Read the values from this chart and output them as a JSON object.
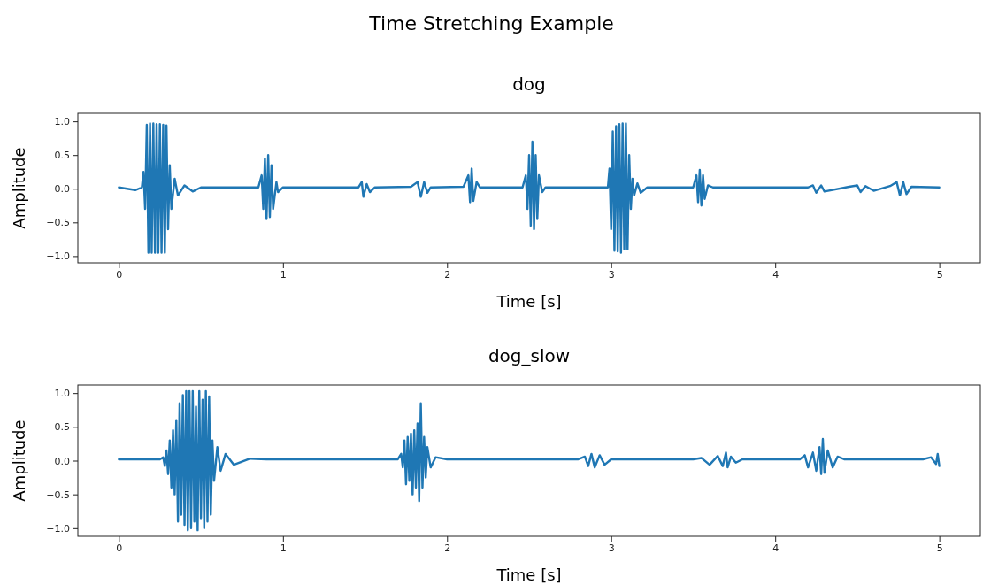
{
  "chart_data": [
    {
      "type": "line",
      "title": "dog",
      "annotations": [
        "Time Stretching Example"
      ],
      "xlabel": "Time [s]",
      "ylabel": "Amplitude",
      "xlim": [
        -0.25,
        5.25
      ],
      "ylim": [
        -1.1,
        1.12
      ],
      "xticks": [
        0,
        1,
        2,
        3,
        4,
        5
      ],
      "yticks": [
        {
          "value": -1,
          "label": "−1.0"
        },
        {
          "value": -0.5,
          "label": "−0.5"
        },
        {
          "value": 0,
          "label": "0.0"
        },
        {
          "value": 0.5,
          "label": "0.5"
        },
        {
          "value": 1,
          "label": "1.0"
        }
      ],
      "series": [
        {
          "color": "#1f77b4",
          "x": [
            0,
            0.1,
            0.14,
            0.15,
            0.16,
            0.17,
            0.18,
            0.19,
            0.2,
            0.21,
            0.22,
            0.23,
            0.24,
            0.25,
            0.26,
            0.27,
            0.28,
            0.29,
            0.3,
            0.31,
            0.32,
            0.34,
            0.36,
            0.4,
            0.45,
            0.5,
            0.85,
            0.87,
            0.88,
            0.89,
            0.9,
            0.91,
            0.92,
            0.93,
            0.94,
            0.96,
            0.97,
            1.0,
            1.46,
            1.48,
            1.49,
            1.51,
            1.53,
            1.56,
            1.78,
            1.82,
            1.84,
            1.86,
            1.88,
            1.9,
            2.1,
            2.13,
            2.14,
            2.15,
            2.16,
            2.18,
            2.2,
            2.46,
            2.48,
            2.49,
            2.5,
            2.51,
            2.52,
            2.53,
            2.54,
            2.55,
            2.56,
            2.58,
            2.6,
            2.98,
            2.99,
            3.0,
            3.01,
            3.02,
            3.03,
            3.04,
            3.05,
            3.06,
            3.07,
            3.08,
            3.09,
            3.1,
            3.11,
            3.12,
            3.13,
            3.14,
            3.16,
            3.18,
            3.22,
            3.5,
            3.52,
            3.53,
            3.54,
            3.55,
            3.56,
            3.57,
            3.59,
            3.62,
            4.2,
            4.23,
            4.25,
            4.28,
            4.3,
            4.45,
            4.5,
            4.52,
            4.55,
            4.6,
            4.7,
            4.74,
            4.76,
            4.78,
            4.8,
            4.83,
            5.0
          ],
          "values": [
            0.02,
            -0.02,
            0.02,
            0.25,
            -0.3,
            0.95,
            -0.95,
            0.97,
            -0.95,
            0.97,
            -0.95,
            0.96,
            -0.95,
            0.96,
            -0.95,
            0.95,
            -0.95,
            0.94,
            -0.6,
            0.35,
            -0.3,
            0.15,
            -0.1,
            0.05,
            -0.04,
            0.02,
            0.02,
            0.2,
            -0.3,
            0.45,
            -0.45,
            0.5,
            -0.42,
            0.35,
            -0.3,
            0.1,
            -0.05,
            0.02,
            0.02,
            0.1,
            -0.12,
            0.07,
            -0.05,
            0.02,
            0.03,
            0.1,
            -0.12,
            0.1,
            -0.06,
            0.02,
            0.03,
            0.2,
            -0.2,
            0.3,
            -0.18,
            0.1,
            0.02,
            0.02,
            0.2,
            -0.3,
            0.5,
            -0.55,
            0.7,
            -0.6,
            0.5,
            -0.45,
            0.2,
            -0.05,
            0.02,
            0.02,
            0.3,
            -0.6,
            0.85,
            -0.92,
            0.93,
            -0.93,
            0.96,
            -0.95,
            0.97,
            -0.9,
            0.97,
            -0.9,
            0.5,
            -0.3,
            0.15,
            -0.1,
            0.08,
            -0.06,
            0.02,
            0.02,
            0.2,
            -0.2,
            0.28,
            -0.25,
            0.2,
            -0.15,
            0.05,
            0.02,
            0.02,
            0.05,
            -0.06,
            0.05,
            -0.04,
            0.03,
            0.05,
            -0.05,
            0.04,
            -0.03,
            0.04,
            0.1,
            -0.1,
            0.1,
            -0.08,
            0.03,
            0.02
          ]
        }
      ]
    },
    {
      "type": "line",
      "title": "dog_slow",
      "xlabel": "Time [s]",
      "ylabel": "Amplitude",
      "xlim": [
        -0.25,
        5.25
      ],
      "ylim": [
        -1.12,
        1.12
      ],
      "xticks": [
        0,
        1,
        2,
        3,
        4,
        5
      ],
      "yticks": [
        {
          "value": -1,
          "label": "−1.0"
        },
        {
          "value": -0.5,
          "label": "−0.5"
        },
        {
          "value": 0,
          "label": "0.0"
        },
        {
          "value": 0.5,
          "label": "0.5"
        },
        {
          "value": 1,
          "label": "1.0"
        }
      ],
      "series": [
        {
          "color": "#1f77b4",
          "x": [
            0,
            0.25,
            0.27,
            0.28,
            0.29,
            0.3,
            0.31,
            0.32,
            0.33,
            0.34,
            0.35,
            0.36,
            0.37,
            0.38,
            0.39,
            0.4,
            0.41,
            0.42,
            0.43,
            0.44,
            0.45,
            0.46,
            0.47,
            0.48,
            0.49,
            0.5,
            0.51,
            0.52,
            0.53,
            0.54,
            0.55,
            0.56,
            0.57,
            0.58,
            0.6,
            0.62,
            0.65,
            0.7,
            0.8,
            0.9,
            1.7,
            1.72,
            1.73,
            1.74,
            1.75,
            1.76,
            1.77,
            1.78,
            1.79,
            1.8,
            1.81,
            1.82,
            1.83,
            1.84,
            1.85,
            1.86,
            1.87,
            1.88,
            1.9,
            1.93,
            2.0,
            2.8,
            2.84,
            2.86,
            2.88,
            2.9,
            2.93,
            2.96,
            3.0,
            3.5,
            3.55,
            3.6,
            3.65,
            3.68,
            3.7,
            3.71,
            3.73,
            3.76,
            3.8,
            4.15,
            4.18,
            4.2,
            4.23,
            4.25,
            4.27,
            4.28,
            4.29,
            4.3,
            4.32,
            4.35,
            4.38,
            4.42,
            4.9,
            4.95,
            4.98,
            4.99,
            5.0
          ],
          "values": [
            0.02,
            0.02,
            0.05,
            -0.08,
            0.15,
            -0.2,
            0.3,
            -0.4,
            0.45,
            -0.5,
            0.6,
            -0.9,
            0.85,
            -0.8,
            0.97,
            -0.95,
            1.03,
            -1.03,
            1.03,
            -1.0,
            1.03,
            -0.9,
            0.8,
            -1.03,
            1.03,
            -0.85,
            0.9,
            -1.0,
            1.03,
            -0.9,
            0.95,
            -0.8,
            0.3,
            -0.3,
            0.2,
            -0.15,
            0.1,
            -0.06,
            0.03,
            0.02,
            0.02,
            0.1,
            -0.1,
            0.3,
            -0.35,
            0.35,
            -0.3,
            0.4,
            -0.5,
            0.45,
            -0.4,
            0.55,
            -0.6,
            0.85,
            -0.4,
            0.35,
            -0.25,
            0.2,
            -0.1,
            0.05,
            0.02,
            0.02,
            0.06,
            -0.08,
            0.1,
            -0.1,
            0.08,
            -0.06,
            0.02,
            0.02,
            0.04,
            -0.06,
            0.07,
            -0.08,
            0.12,
            -0.1,
            0.06,
            -0.03,
            0.02,
            0.02,
            0.08,
            -0.1,
            0.12,
            -0.15,
            0.2,
            -0.2,
            0.32,
            -0.18,
            0.15,
            -0.1,
            0.06,
            0.02,
            0.02,
            0.05,
            -0.05,
            0.1,
            -0.08
          ]
        }
      ]
    }
  ]
}
